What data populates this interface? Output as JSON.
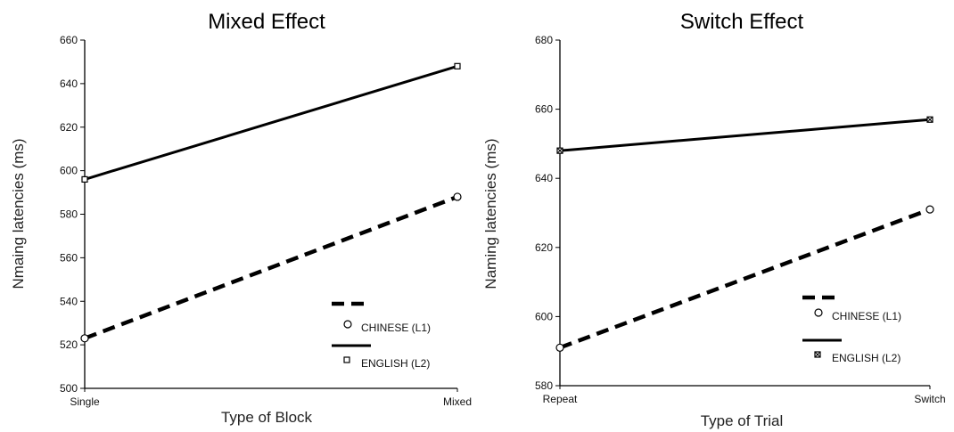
{
  "chart_data": [
    {
      "type": "line",
      "title": "Mixed Effect",
      "xlabel": "Type of Block",
      "ylabel": "Nmaing latencies (ms)",
      "categories": [
        "Single",
        "Mixed"
      ],
      "ylim": [
        500,
        660
      ],
      "yticks": [
        500,
        520,
        540,
        560,
        580,
        600,
        620,
        640,
        660
      ],
      "grid": false,
      "legend_position": "bottom-right",
      "series": [
        {
          "name": "CHINESE (L1)",
          "values": [
            523,
            588
          ],
          "line_style": "dashed",
          "marker": "circle"
        },
        {
          "name": "ENGLISH (L2)",
          "values": [
            596,
            648
          ],
          "line_style": "solid",
          "marker": "square"
        }
      ]
    },
    {
      "type": "line",
      "title": "Switch Effect",
      "xlabel": "Type of Trial",
      "ylabel": "Naming latencies (ms)",
      "categories": [
        "Repeat",
        "Switch"
      ],
      "ylim": [
        580,
        680
      ],
      "yticks": [
        580,
        600,
        620,
        640,
        660,
        680
      ],
      "grid": false,
      "legend_position": "bottom-right",
      "series": [
        {
          "name": "CHINESE (L1)",
          "values": [
            591,
            631
          ],
          "line_style": "dashed",
          "marker": "circle"
        },
        {
          "name": "ENGLISH (L2)",
          "values": [
            648,
            657
          ],
          "line_style": "solid",
          "marker": "square-crossed"
        }
      ]
    }
  ]
}
